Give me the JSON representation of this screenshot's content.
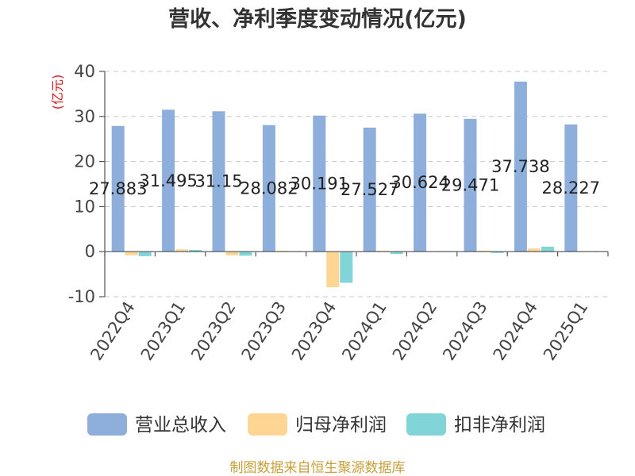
{
  "chart_data": {
    "type": "bar",
    "title": "营收、净利季度变动情况(亿元)",
    "xlabel": "",
    "ylabel": "(亿元)",
    "ylim": [
      -10,
      40
    ],
    "yticks": [
      -10,
      0,
      10,
      20,
      30,
      40
    ],
    "grid": true,
    "legend_position": "bottom",
    "categories": [
      "2022Q4",
      "2023Q1",
      "2023Q2",
      "2023Q3",
      "2023Q4",
      "2024Q1",
      "2024Q2",
      "2024Q3",
      "2024Q4",
      "2025Q1"
    ],
    "series": [
      {
        "name": "营业总收入",
        "color": "#8eaedc",
        "show_value_labels": true,
        "values": [
          27.883,
          31.495,
          31.15,
          28.082,
          30.191,
          27.527,
          30.624,
          29.471,
          37.738,
          28.227
        ]
      },
      {
        "name": "归母净利润",
        "color": "#ffd594",
        "show_value_labels": false,
        "values": [
          -0.8,
          0.5,
          -0.8,
          0.2,
          -7.9,
          0.2,
          0.1,
          0.2,
          0.7,
          0.1
        ]
      },
      {
        "name": "扣非净利润",
        "color": "#81d4d7",
        "show_value_labels": false,
        "values": [
          -1.0,
          0.4,
          -0.9,
          0.1,
          -6.9,
          -0.5,
          0.1,
          -0.3,
          1.1,
          0.1
        ]
      }
    ]
  },
  "colors": {
    "ylabel": "#e0161b",
    "source_note": "#c8a03c",
    "axis_text": "#444444",
    "grid": "#c8c8c8"
  },
  "source_note": "制图数据来自恒生聚源数据库"
}
